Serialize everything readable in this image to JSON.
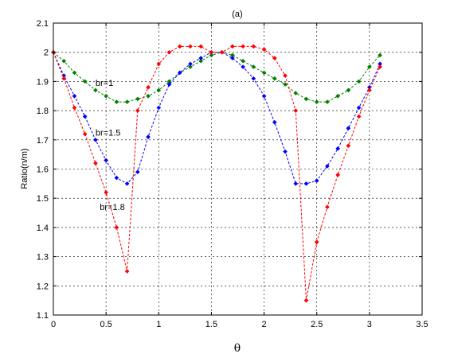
{
  "chart_data": {
    "type": "line",
    "title": "(a)",
    "xlabel": "θ",
    "ylabel": "Ratio(n/m)",
    "xlim": [
      0,
      3.5
    ],
    "ylim": [
      1.1,
      2.1
    ],
    "xticks": [
      "0",
      "0.5",
      "1",
      "1.5",
      "2",
      "2.5",
      "3",
      "3.5"
    ],
    "yticks": [
      "1.1",
      "1.2",
      "1.3",
      "1.4",
      "1.5",
      "1.6",
      "1.7",
      "1.8",
      "1.9",
      "2",
      "2.1"
    ],
    "grid": true,
    "annotations": [
      {
        "text": "br=1",
        "x": 0.4,
        "y": 1.885
      },
      {
        "text": "br=1.5",
        "x": 0.4,
        "y": 1.715
      },
      {
        "text": "br=1.8",
        "x": 0.44,
        "y": 1.46
      }
    ],
    "x": [
      0,
      0.1,
      0.2,
      0.3,
      0.4,
      0.5,
      0.6,
      0.7,
      0.8,
      0.9,
      1.0,
      1.1,
      1.2,
      1.3,
      1.4,
      1.5,
      1.6,
      1.7,
      1.8,
      1.9,
      2.0,
      2.1,
      2.2,
      2.3,
      2.4,
      2.5,
      2.6,
      2.7,
      2.8,
      2.9,
      3.0,
      3.1
    ],
    "series": [
      {
        "color": "#008000",
        "values": [
          2.0,
          1.97,
          1.93,
          1.9,
          1.87,
          1.85,
          1.83,
          1.83,
          1.84,
          1.85,
          1.87,
          1.9,
          1.93,
          1.95,
          1.97,
          1.99,
          2.0,
          1.99,
          1.97,
          1.95,
          1.93,
          1.91,
          1.89,
          1.86,
          1.84,
          1.83,
          1.83,
          1.85,
          1.87,
          1.9,
          1.95,
          1.99
        ]
      },
      {
        "color": "#0000ff",
        "values": [
          2.0,
          1.92,
          1.85,
          1.78,
          1.7,
          1.63,
          1.57,
          1.55,
          1.59,
          1.71,
          1.81,
          1.89,
          1.93,
          1.96,
          1.98,
          2.0,
          2.0,
          1.98,
          1.95,
          1.91,
          1.85,
          1.76,
          1.66,
          1.55,
          1.55,
          1.56,
          1.61,
          1.67,
          1.74,
          1.81,
          1.88,
          1.96
        ]
      },
      {
        "color": "#ff0000",
        "values": [
          2.0,
          1.91,
          1.81,
          1.72,
          1.62,
          1.52,
          1.4,
          1.25,
          1.8,
          1.88,
          1.96,
          2.0,
          2.02,
          2.02,
          2.02,
          2.0,
          2.0,
          2.02,
          2.02,
          2.02,
          2.01,
          1.98,
          1.92,
          1.8,
          1.15,
          1.35,
          1.47,
          1.58,
          1.68,
          1.78,
          1.87,
          1.95
        ]
      }
    ]
  }
}
